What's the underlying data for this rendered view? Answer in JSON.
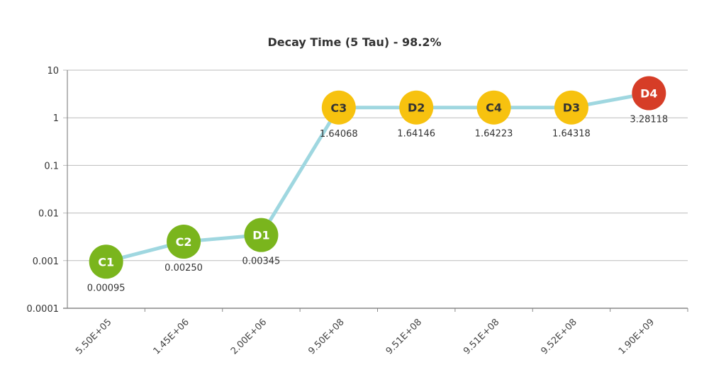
{
  "chart_data": {
    "type": "line",
    "title": "Decay Time (5 Tau) - 98.2%",
    "xlabel": "",
    "ylabel": "",
    "yscale": "log",
    "ylim": [
      0.0001,
      10
    ],
    "yticks": [
      "10",
      "1",
      "0.1",
      "0.01",
      "0.001",
      "0.0001"
    ],
    "yticks_values": [
      10,
      1,
      0.1,
      0.01,
      0.001,
      0.0001
    ],
    "grid": true,
    "categories": [
      "5.50E+05",
      "1.45E+06",
      "2.00E+06",
      "9.50E+08",
      "9.51E+08",
      "9.51E+08",
      "9.52E+08",
      "1.90E+09"
    ],
    "series": [
      {
        "name": "Decay Time",
        "values": [
          0.00095,
          0.0025,
          0.00345,
          1.64068,
          1.64146,
          1.64223,
          1.64318,
          3.28118
        ],
        "value_labels": [
          "0.00095",
          "0.00250",
          "0.00345",
          "1.64068",
          "1.64146",
          "1.64223",
          "1.64318",
          "3.28118"
        ],
        "point_labels": [
          "C1",
          "C2",
          "D1",
          "C3",
          "D2",
          "C4",
          "D3",
          "D4"
        ],
        "point_colors": [
          "#7ab51d",
          "#7ab51d",
          "#7ab51d",
          "#f7c20f",
          "#f7c20f",
          "#f7c20f",
          "#f7c20f",
          "#d63d27"
        ],
        "point_text_colors": [
          "#ffffff",
          "#ffffff",
          "#ffffff",
          "#333333",
          "#333333",
          "#333333",
          "#333333",
          "#ffffff"
        ],
        "line_color": "#9fd7e0"
      }
    ]
  }
}
